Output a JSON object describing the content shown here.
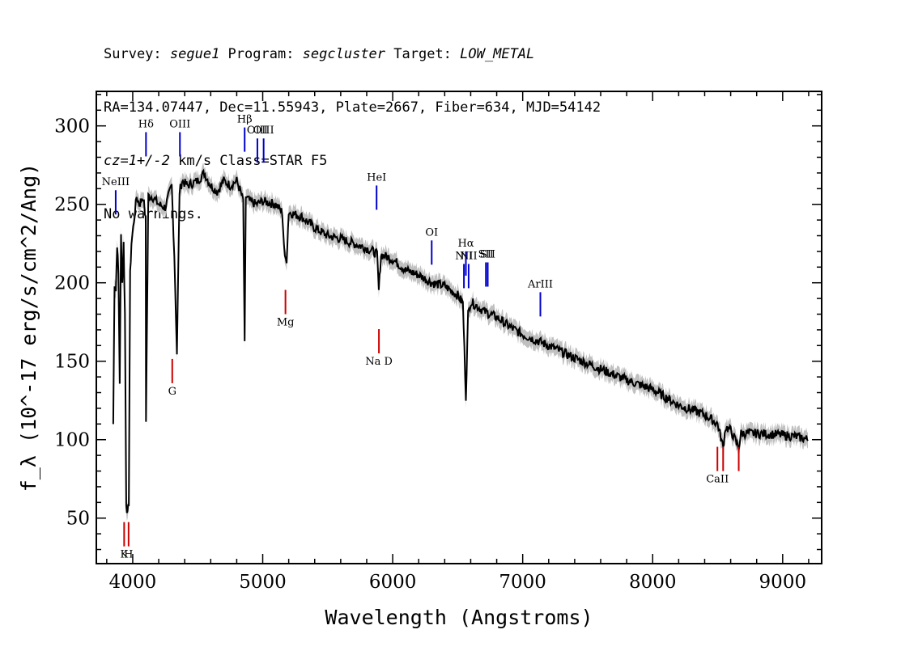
{
  "header": {
    "line1": {
      "survey_label": "Survey: ",
      "survey": "segue1",
      "program_label": " Program: ",
      "program": "segcluster",
      "target_label": " Target: ",
      "target": "LOW_METAL"
    },
    "line2": "RA=134.07447, Dec=11.55943, Plate=2667, Fiber=634, MJD=54142",
    "line3": {
      "cz": "cz=1+/-2",
      "rest": " km/s Class=STAR F5"
    },
    "line4": "No warnings."
  },
  "chart_data": {
    "type": "line",
    "xlabel": "Wavelength (Angstroms)",
    "ylabel": "f_λ (10^-17 erg/s/cm^2/Ang)",
    "xlim": [
      3720,
      9300
    ],
    "ylim": [
      21,
      322
    ],
    "x_ticks": [
      4000,
      5000,
      6000,
      7000,
      8000,
      9000
    ],
    "y_ticks": [
      50,
      100,
      150,
      200,
      250,
      300
    ],
    "x_tick_labels": [
      "4000",
      "5000",
      "6000",
      "7000",
      "8000",
      "9000"
    ],
    "y_tick_labels": [
      "50",
      "100",
      "150",
      "200",
      "250",
      "300"
    ],
    "series": [
      {
        "color": "#000000",
        "x": [
          3850,
          3860,
          3870,
          3880,
          3890,
          3900,
          3910,
          3920,
          3930,
          3940,
          3950,
          3960,
          3970,
          3980,
          3990,
          4010,
          4030,
          4050,
          4080,
          4100,
          4102,
          4120,
          4150,
          4200,
          4250,
          4300,
          4320,
          4340,
          4360,
          4380,
          4420,
          4500,
          4550,
          4600,
          4650,
          4700,
          4750,
          4800,
          4830,
          4850,
          4861,
          4870,
          4900,
          4950,
          5000,
          5100,
          5150,
          5170,
          5184,
          5200,
          5300,
          5400,
          5500,
          5600,
          5700,
          5800,
          5850,
          5880,
          5893,
          5910,
          6000,
          6100,
          6200,
          6300,
          6400,
          6500,
          6540,
          6563,
          6580,
          6600,
          6700,
          6800,
          6900,
          7000,
          7200,
          7400,
          7600,
          7800,
          8000,
          8200,
          8400,
          8500,
          8542,
          8560,
          8600,
          8662,
          8680,
          8800,
          9000,
          9100,
          9200
        ],
        "y": [
          110,
          200,
          195,
          225,
          205,
          137,
          230,
          200,
          225,
          180,
          60,
          52,
          60,
          205,
          225,
          240,
          255,
          250,
          255,
          240,
          113,
          255,
          255,
          250,
          248,
          262,
          218,
          155,
          258,
          265,
          262,
          265,
          270,
          262,
          258,
          265,
          262,
          265,
          258,
          252,
          160,
          255,
          252,
          250,
          252,
          250,
          245,
          215,
          215,
          245,
          242,
          235,
          230,
          228,
          225,
          222,
          220,
          218,
          195,
          218,
          215,
          208,
          205,
          200,
          198,
          192,
          187,
          127,
          180,
          188,
          182,
          178,
          172,
          167,
          160,
          152,
          145,
          138,
          132,
          122,
          116,
          110,
          95,
          108,
          106,
          95,
          104,
          104,
          103,
          102,
          100
        ]
      },
      {
        "color": "#c0c0c0",
        "name": "",
        "x": [],
        "y": []
      }
    ],
    "emission_lines": [
      {
        "label": "NeIII",
        "x": 3869,
        "y_top": 259
      },
      {
        "label": "Hδ",
        "x": 4102,
        "y_top": 296
      },
      {
        "label": "OIII",
        "x": 4363,
        "y_top": 296
      },
      {
        "label": "Hβ",
        "x": 4861,
        "y_top": 299
      },
      {
        "label": "OIII",
        "x": 4959,
        "y_top": 292
      },
      {
        "label": "OIII",
        "x": 5007,
        "y_top": 292
      },
      {
        "label": "HeI",
        "x": 5876,
        "y_top": 262
      },
      {
        "label": "OI",
        "x": 6300,
        "y_top": 227
      },
      {
        "label": "NII",
        "x": 6548,
        "y_top": 212
      },
      {
        "label": "Hα",
        "x": 6563,
        "y_top": 220
      },
      {
        "label": "NII",
        "x": 6584,
        "y_top": 212
      },
      {
        "label": "SII",
        "x": 6717,
        "y_top": 213
      },
      {
        "label": "SII",
        "x": 6731,
        "y_top": 213
      },
      {
        "label": "ArIII",
        "x": 7136,
        "y_top": 194
      }
    ],
    "absorption_lines": [
      {
        "label": "K",
        "x": 3934,
        "y_top": 32
      },
      {
        "label": "H",
        "x": 3968,
        "y_top": 32
      },
      {
        "label": "G",
        "x": 4304,
        "y_top": 136
      },
      {
        "label": "Mg",
        "x": 5175,
        "y_top": 180
      },
      {
        "label": "Na D",
        "x": 5894,
        "y_top": 155
      },
      {
        "label": "CaII",
        "x": 8498,
        "y_top": 80
      },
      {
        "label": "CaII",
        "x": 8542,
        "y_top": 80
      },
      {
        "label": "CaII",
        "x": 8662,
        "y_top": 80
      }
    ]
  }
}
